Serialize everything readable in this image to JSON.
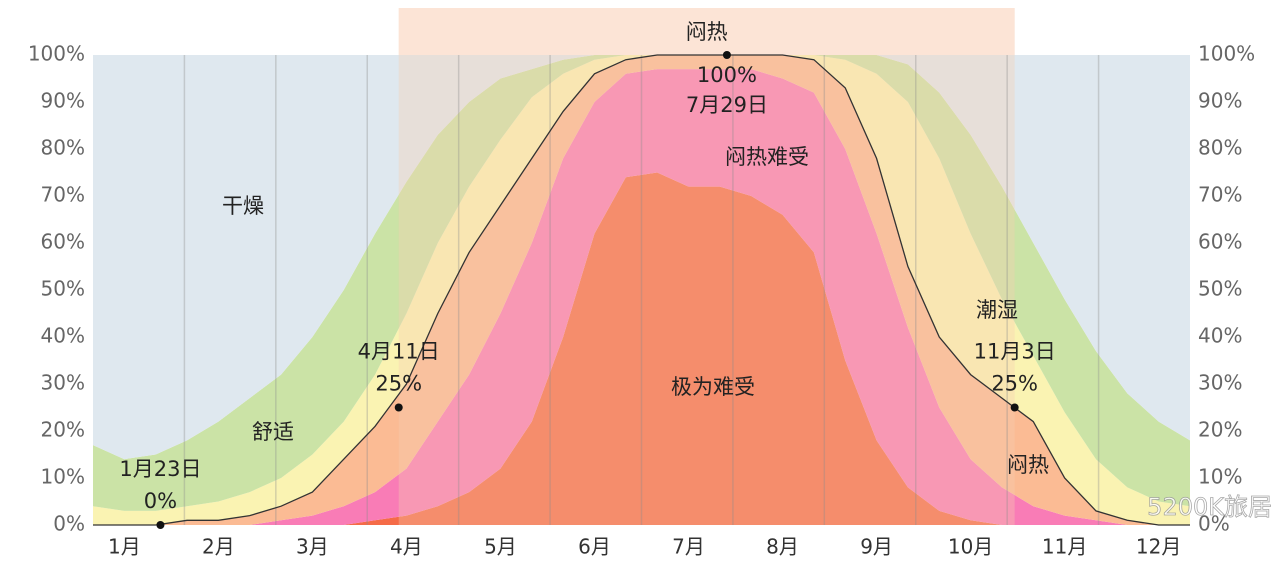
{
  "chart_data": {
    "type": "area",
    "stacked": true,
    "categories": [
      null,
      "1月",
      null,
      null,
      "2月",
      null,
      null,
      "3月",
      null,
      null,
      "4月",
      null,
      null,
      "5月",
      null,
      null,
      "6月",
      null,
      null,
      "7月",
      null,
      null,
      "8月",
      null,
      null,
      "9月",
      null,
      null,
      "10月",
      null,
      null,
      "11月",
      null,
      null,
      "12月",
      null
    ],
    "series": [
      {
        "name": "极为难受",
        "color": "#f56b48",
        "values": [
          0,
          0,
          0,
          0,
          0,
          0,
          0,
          0,
          0,
          1,
          2,
          4,
          7,
          12,
          22,
          40,
          62,
          74,
          75,
          72,
          72,
          70,
          66,
          58,
          35,
          18,
          8,
          3,
          1,
          0,
          0,
          0,
          0,
          0,
          0,
          0
        ]
      },
      {
        "name": "闷热难受",
        "color": "#f97cb6",
        "values": [
          0,
          0,
          0,
          0,
          0,
          0,
          1,
          2,
          4,
          6,
          10,
          18,
          25,
          33,
          38,
          38,
          28,
          22,
          22,
          25,
          25,
          27,
          29,
          34,
          45,
          44,
          34,
          22,
          13,
          8,
          4,
          2,
          1,
          0,
          0,
          0
        ]
      },
      {
        "name": "闷热",
        "color": "#fbbb94",
        "values": [
          0,
          0,
          0,
          1,
          1,
          2,
          3,
          5,
          10,
          14,
          18,
          23,
          26,
          23,
          18,
          10,
          6,
          3,
          3,
          3,
          3,
          3,
          5,
          7,
          13,
          16,
          13,
          15,
          18,
          19,
          18,
          8,
          2,
          1,
          0,
          0
        ]
      },
      {
        "name": "潮湿",
        "color": "#faf3b2",
        "values": [
          4,
          3,
          3,
          3,
          4,
          5,
          6,
          8,
          8,
          11,
          15,
          15,
          14,
          14,
          13,
          8,
          3,
          1,
          0,
          0,
          0,
          0,
          0,
          1,
          6,
          18,
          35,
          38,
          30,
          21,
          14,
          14,
          11,
          7,
          5,
          4
        ]
      },
      {
        "name": "舒适",
        "color": "#cbe3a6",
        "values": [
          13,
          11,
          12,
          14,
          17,
          20,
          22,
          25,
          28,
          30,
          28,
          23,
          18,
          13,
          6,
          3,
          1,
          0,
          0,
          0,
          0,
          0,
          0,
          0,
          1,
          4,
          8,
          14,
          21,
          24,
          24,
          24,
          23,
          20,
          17,
          14
        ]
      },
      {
        "name": "干燥",
        "color": "#dfe8ef",
        "values": [
          83,
          86,
          85,
          82,
          78,
          73,
          68,
          60,
          50,
          38,
          27,
          17,
          10,
          5,
          3,
          1,
          0,
          0,
          0,
          0,
          0,
          0,
          0,
          0,
          0,
          0,
          2,
          8,
          17,
          28,
          40,
          52,
          63,
          72,
          78,
          82
        ]
      }
    ],
    "ylim": [
      0,
      100
    ],
    "yticks": [
      {
        "value": 0,
        "label": "0%"
      },
      {
        "value": 10,
        "label": "10%"
      },
      {
        "value": 20,
        "label": "20%"
      },
      {
        "value": 30,
        "label": "30%"
      },
      {
        "value": 40,
        "label": "40%"
      },
      {
        "value": 50,
        "label": "50%"
      },
      {
        "value": 60,
        "label": "60%"
      },
      {
        "value": 70,
        "label": "70%"
      },
      {
        "value": 80,
        "label": "80%"
      },
      {
        "value": 90,
        "label": "90%"
      },
      {
        "value": 100,
        "label": "100%"
      }
    ],
    "period_label": "闷热",
    "annotations": [
      {
        "date": "1月23日",
        "value": 0,
        "value_label": "0%"
      },
      {
        "date": "4月11日",
        "value": 25,
        "value_label": "25%"
      },
      {
        "date": "7月29日",
        "value": 100,
        "value_label": "100%"
      },
      {
        "date": "11月3日",
        "value": 25,
        "value_label": "25%"
      }
    ],
    "watermark": "5200K旅居"
  }
}
